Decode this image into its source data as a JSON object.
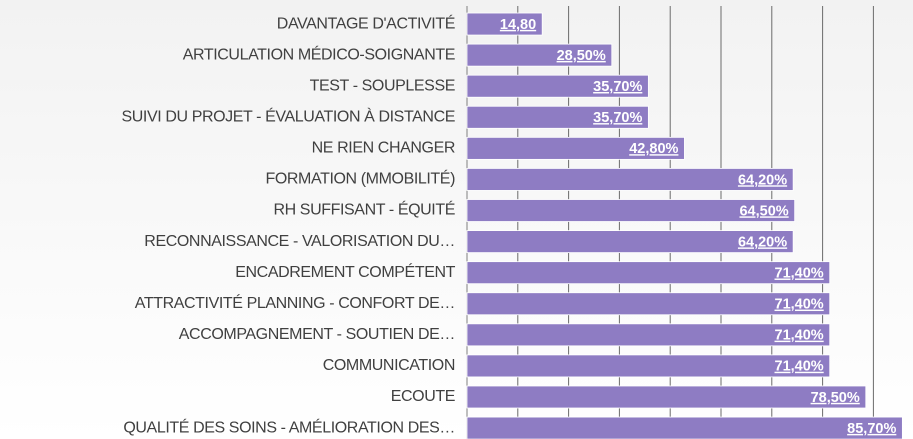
{
  "chart_data": {
    "type": "barh",
    "categories": [
      "DAVANTAGE D'ACTIVITÉ",
      "ARTICULATION MÉDICO-SOIGNANTE",
      "TEST - SOUPLESSE",
      "SUIVI DU PROJET - ÉVALUATION À DISTANCE",
      "NE RIEN CHANGER",
      "FORMATION (MMOBILITÉ)",
      "RH SUFFISANT - ÉQUITÉ",
      "RECONNAISSANCE - VALORISATION DU…",
      "ENCADREMENT COMPÉTENT",
      "ATTRACTIVITÉ PLANNING - CONFORT DE…",
      "ACCOMPAGNEMENT  - SOUTIEN DE…",
      "COMMUNICATION",
      "ECOUTE",
      "QUALITÉ DES SOINS - AMÉLIORATION DES…"
    ],
    "values": [
      14.8,
      28.5,
      35.7,
      35.7,
      42.8,
      64.2,
      64.5,
      64.2,
      71.4,
      71.4,
      71.4,
      71.4,
      78.5,
      85.7
    ],
    "value_labels": [
      "14,80",
      "28,50%",
      "35,70%",
      "35,70%",
      "42,80%",
      "64,20%",
      "64,50%",
      "64,20%",
      "71,40%",
      "71,40%",
      "71,40%",
      "71,40%",
      "78,50%",
      "85,70%"
    ],
    "color": "#8e7cc3",
    "xlim": [
      0,
      90
    ],
    "xticks": [
      0,
      10,
      20,
      30,
      40,
      50,
      60,
      70,
      80
    ],
    "tick_labels": false,
    "grid": true
  }
}
